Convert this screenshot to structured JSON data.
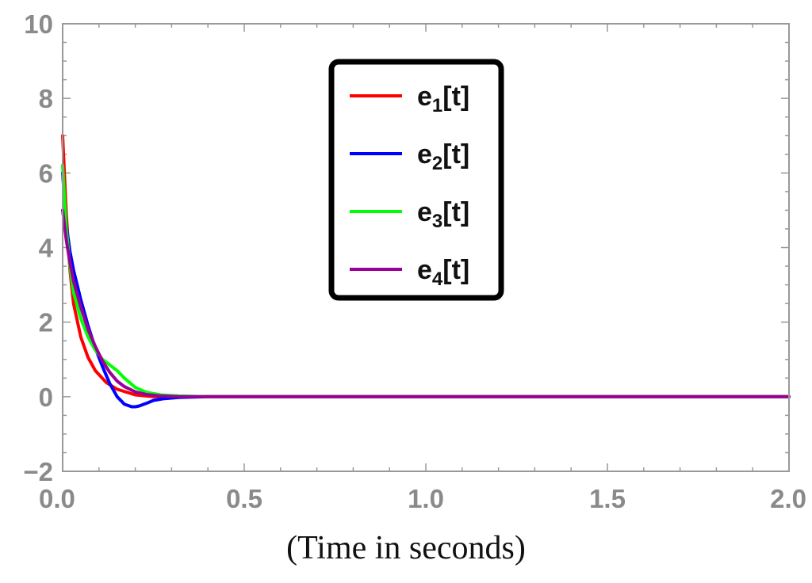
{
  "chart_data": {
    "type": "line",
    "title": "",
    "xlabel": "(Time in seconds)",
    "ylabel": "",
    "xlim": [
      0,
      2.0
    ],
    "ylim": [
      -2,
      10
    ],
    "x_ticks": [
      "0.0",
      "0.5",
      "1.0",
      "1.5",
      "2.0"
    ],
    "y_ticks": [
      "−2",
      "0",
      "2",
      "4",
      "6",
      "8",
      "10"
    ],
    "grid": false,
    "legend_position": "top-center",
    "series": [
      {
        "name": "e1[t]",
        "label_base": "e",
        "label_sub": "1",
        "label_tail": "[t]",
        "color": "#ff0000",
        "x": [
          0,
          0.01,
          0.02,
          0.03,
          0.05,
          0.07,
          0.09,
          0.12,
          0.15,
          0.2,
          0.25,
          0.3,
          0.4,
          0.5,
          0.75,
          1.0,
          1.25,
          1.5,
          1.75,
          2.0
        ],
        "y": [
          7.0,
          4.9,
          3.4,
          2.5,
          1.6,
          1.05,
          0.7,
          0.38,
          0.2,
          0.05,
          0.0,
          0.0,
          0.0,
          0.0,
          0.0,
          0.0,
          0.0,
          0.0,
          0.0,
          0.0
        ]
      },
      {
        "name": "e2[t]",
        "label_base": "e",
        "label_sub": "2",
        "label_tail": "[t]",
        "color": "#0000ff",
        "x": [
          0,
          0.01,
          0.02,
          0.03,
          0.05,
          0.07,
          0.09,
          0.11,
          0.13,
          0.15,
          0.17,
          0.19,
          0.2,
          0.21,
          0.23,
          0.25,
          0.28,
          0.32,
          0.4,
          0.5,
          0.75,
          1.0,
          1.25,
          1.5,
          1.75,
          2.0
        ],
        "y": [
          6.0,
          4.6,
          3.9,
          3.4,
          2.6,
          1.9,
          1.3,
          0.8,
          0.35,
          0.0,
          -0.2,
          -0.27,
          -0.27,
          -0.25,
          -0.18,
          -0.1,
          -0.05,
          -0.02,
          0.0,
          0.0,
          0.0,
          0.0,
          0.0,
          0.0,
          0.0,
          0.0
        ]
      },
      {
        "name": "e3[t]",
        "label_base": "e",
        "label_sub": "3",
        "label_tail": "[t]",
        "color": "#00ff00",
        "x": [
          0,
          0.01,
          0.02,
          0.03,
          0.05,
          0.07,
          0.09,
          0.11,
          0.13,
          0.15,
          0.17,
          0.2,
          0.23,
          0.27,
          0.32,
          0.4,
          0.5,
          0.75,
          1.0,
          1.25,
          1.5,
          1.75,
          2.0
        ],
        "y": [
          6.2,
          4.5,
          3.5,
          2.8,
          2.1,
          1.6,
          1.25,
          1.0,
          0.85,
          0.7,
          0.5,
          0.25,
          0.12,
          0.05,
          0.02,
          0.0,
          0.0,
          0.0,
          0.0,
          0.0,
          0.0,
          0.0,
          0.0
        ]
      },
      {
        "name": "e4[t]",
        "label_base": "e",
        "label_sub": "4",
        "label_tail": "[t]",
        "color": "#990099",
        "x": [
          0,
          0.01,
          0.02,
          0.03,
          0.05,
          0.07,
          0.09,
          0.11,
          0.13,
          0.15,
          0.17,
          0.2,
          0.23,
          0.27,
          0.32,
          0.4,
          0.5,
          0.75,
          1.0,
          1.25,
          1.5,
          1.75,
          2.0
        ],
        "y": [
          5.0,
          4.2,
          3.6,
          3.1,
          2.4,
          1.8,
          1.35,
          0.95,
          0.65,
          0.42,
          0.27,
          0.13,
          0.06,
          0.02,
          0.0,
          0.0,
          0.0,
          0.0,
          0.0,
          0.0,
          0.0,
          0.0,
          0.0
        ]
      }
    ]
  }
}
